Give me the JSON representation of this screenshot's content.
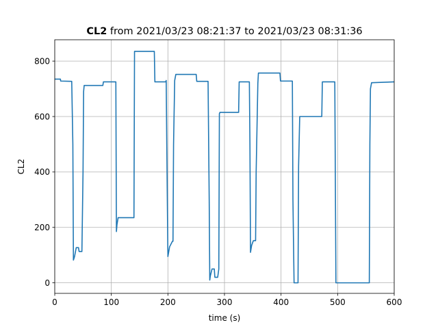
{
  "chart_data": {
    "type": "line",
    "title_bold": "CL2",
    "title_rest": " from 2021/03/23 08:21:37 to 2021/03/23 08:31:36",
    "xlabel": "time (s)",
    "ylabel": "CL2",
    "xlim": [
      0,
      600
    ],
    "ylim": [
      -38,
      877
    ],
    "xticks": [
      0,
      100,
      200,
      300,
      400,
      500,
      600
    ],
    "yticks": [
      0,
      200,
      400,
      600,
      800
    ],
    "grid": true,
    "line_color": "#1f77b4",
    "series": [
      {
        "x": [
          0,
          10,
          10.5,
          30,
          32,
          33,
          35,
          38,
          42,
          43,
          48,
          50,
          51,
          52,
          85,
          86,
          108,
          109,
          110,
          112,
          140,
          141,
          176,
          177,
          196,
          197,
          198,
          200,
          203,
          208,
          209,
          210,
          212,
          214,
          250,
          251,
          271,
          273,
          274,
          275,
          278,
          282,
          283,
          288,
          290,
          291,
          292,
          325,
          326,
          344,
          345,
          346,
          348,
          351,
          355,
          356,
          359,
          360,
          398,
          399,
          420,
          421,
          423,
          426,
          430,
          431,
          433,
          472,
          473,
          495,
          497,
          556,
          557,
          558,
          560,
          600
        ],
        "y": [
          735,
          735,
          728,
          727,
          500,
          82,
          95,
          127,
          127,
          113,
          113,
          400,
          690,
          712,
          712,
          725,
          725,
          185,
          210,
          235,
          235,
          835,
          835,
          725,
          725,
          730,
          500,
          95,
          130,
          150,
          150,
          500,
          730,
          752,
          752,
          727,
          727,
          300,
          10,
          25,
          50,
          50,
          20,
          20,
          50,
          610,
          615,
          615,
          725,
          725,
          500,
          110,
          135,
          152,
          152,
          400,
          720,
          757,
          757,
          728,
          728,
          300,
          0,
          0,
          0,
          420,
          600,
          600,
          725,
          725,
          0,
          0,
          500,
          700,
          722,
          725
        ]
      }
    ]
  }
}
